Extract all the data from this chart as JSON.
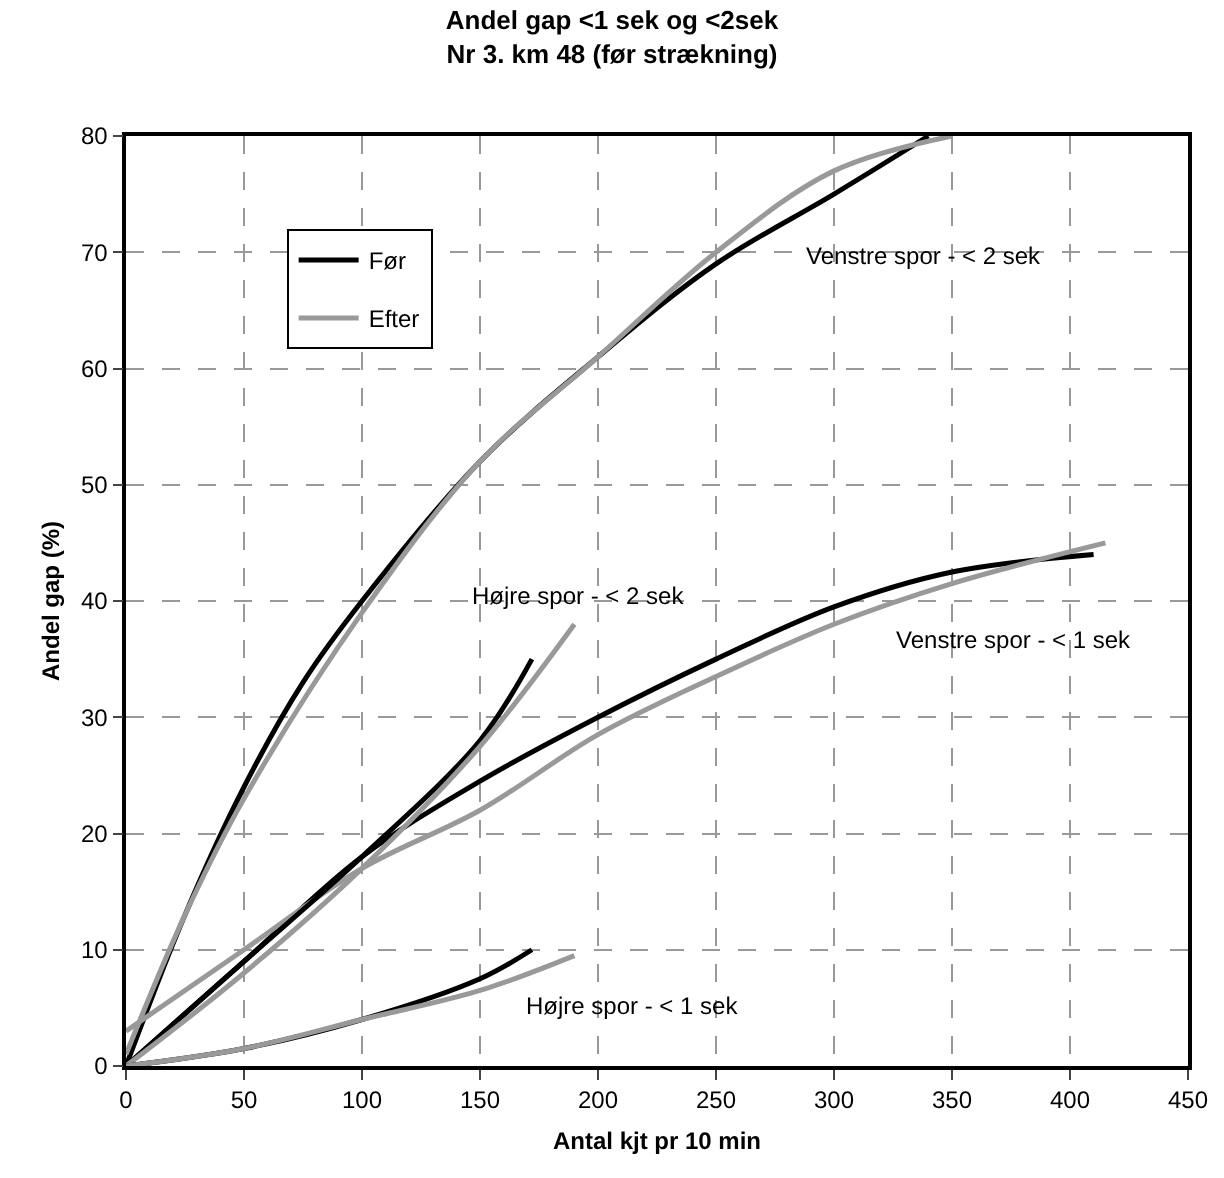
{
  "chart_data": {
    "type": "line",
    "title": "Andel gap <1 sek og <2sek\nNr 3. km 48 (før strækning)",
    "xlabel": "Antal kjt pr 10 min",
    "ylabel": "Andel gap (%)",
    "xlim": [
      0,
      450
    ],
    "xticks": [
      0,
      50,
      100,
      150,
      200,
      250,
      300,
      350,
      400,
      450
    ],
    "ylim": [
      0,
      80
    ],
    "yticks": [
      0,
      10,
      20,
      30,
      40,
      50,
      60,
      70,
      80
    ],
    "grid": true,
    "legend": "top left",
    "line_style": "solid",
    "marker": "none",
    "series": [
      {
        "name": "Før",
        "color": "#000000",
        "x": [
          0,
          25,
          50,
          75,
          100,
          150,
          200,
          250,
          300,
          340
        ],
        "values": [
          0,
          13,
          24,
          33,
          40,
          52,
          61,
          69,
          75,
          80
        ]
      },
      {
        "name": "Efter",
        "color": "#999999",
        "x": [
          0,
          25,
          50,
          100,
          150,
          200,
          250,
          300,
          350
        ],
        "values": [
          1,
          13,
          23,
          39,
          52,
          61,
          70,
          77,
          80
        ]
      },
      {
        "color": "#000000",
        "x": [
          0,
          50,
          100,
          150,
          200,
          250,
          300,
          350,
          410
        ],
        "values": [
          0,
          9,
          18,
          24.5,
          30,
          35,
          39.5,
          42.5,
          44
        ]
      },
      {
        "color": "#999999",
        "x": [
          0,
          50,
          100,
          150,
          200,
          250,
          300,
          350,
          415
        ],
        "values": [
          3,
          10,
          17,
          22,
          28.5,
          33.5,
          38,
          41.5,
          45
        ]
      },
      {
        "color": "#000000",
        "x": [
          0,
          50,
          100,
          150,
          172
        ],
        "values": [
          0,
          9,
          18,
          28,
          35
        ]
      },
      {
        "color": "#999999",
        "x": [
          0,
          50,
          100,
          150,
          190
        ],
        "values": [
          0,
          8,
          17,
          27.5,
          38
        ]
      },
      {
        "color": "#000000",
        "x": [
          0,
          50,
          100,
          150,
          172
        ],
        "values": [
          0,
          1.5,
          4,
          7.5,
          10
        ]
      },
      {
        "color": "#999999",
        "x": [
          0,
          50,
          100,
          150,
          190
        ],
        "values": [
          0,
          1.5,
          4,
          6.5,
          9.5
        ]
      }
    ],
    "annotations": [
      "Venstre spor - < 2 sek",
      "Højre spor - < 2 sek",
      "Venstre spor - < 1 sek",
      "Højre spor - < 1 sek"
    ]
  }
}
